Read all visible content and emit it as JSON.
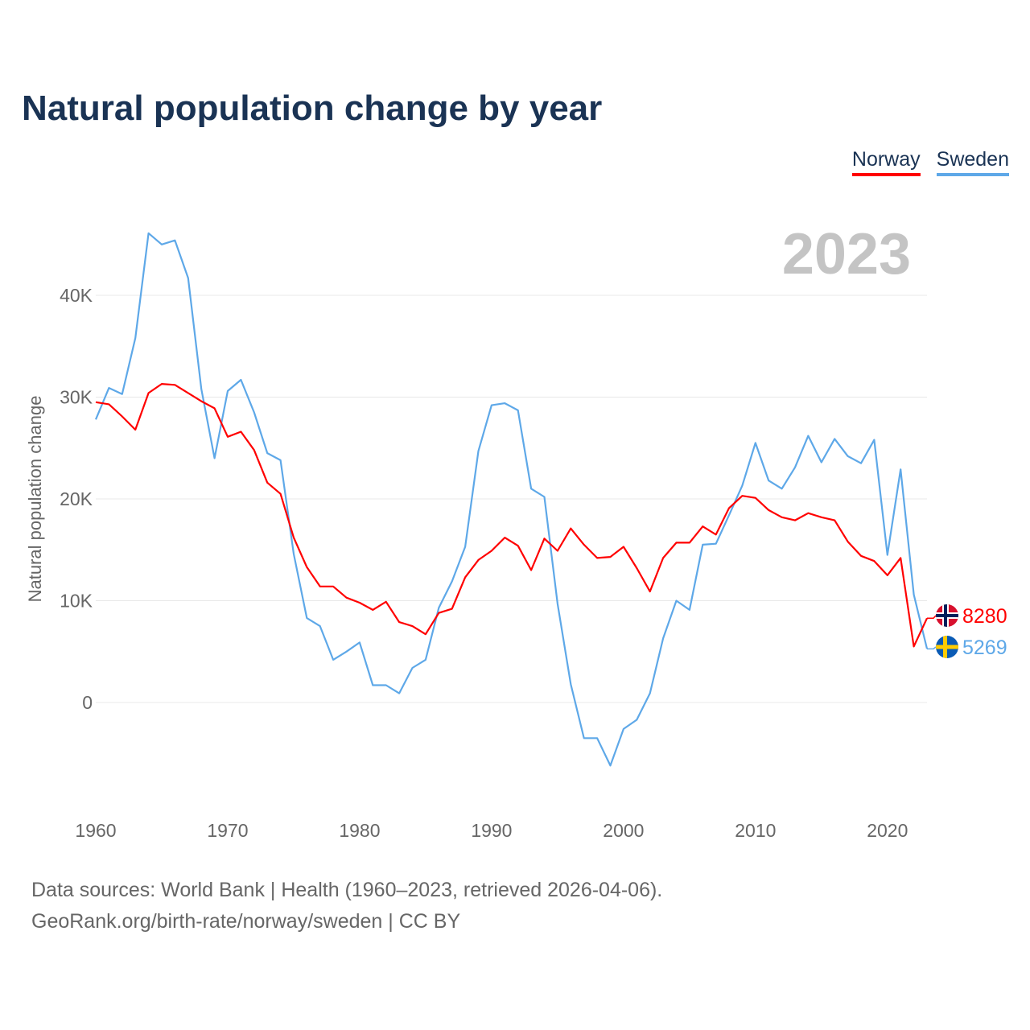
{
  "chart_data": {
    "type": "line",
    "title": "Natural population change by year",
    "xlabel": "",
    "ylabel": "Natural population change",
    "xlim": [
      1960,
      2023
    ],
    "ylim": [
      -10000,
      46000
    ],
    "x_ticks": [
      "1960",
      "1970",
      "1980",
      "1990",
      "2000",
      "2010",
      "2020"
    ],
    "y_ticks": [
      {
        "v": 0,
        "label": "0"
      },
      {
        "v": 10000,
        "label": "10K"
      },
      {
        "v": 20000,
        "label": "20K"
      },
      {
        "v": 30000,
        "label": "30K"
      },
      {
        "v": 40000,
        "label": "40K"
      }
    ],
    "grid": true,
    "legend_position": "top-right",
    "current_year_label": "2023",
    "x": [
      1960,
      1961,
      1962,
      1963,
      1964,
      1965,
      1966,
      1967,
      1968,
      1969,
      1970,
      1971,
      1972,
      1973,
      1974,
      1975,
      1976,
      1977,
      1978,
      1979,
      1980,
      1981,
      1982,
      1983,
      1984,
      1985,
      1986,
      1987,
      1988,
      1989,
      1990,
      1991,
      1992,
      1993,
      1994,
      1995,
      1996,
      1997,
      1998,
      1999,
      2000,
      2001,
      2002,
      2003,
      2004,
      2005,
      2006,
      2007,
      2008,
      2009,
      2010,
      2011,
      2012,
      2013,
      2014,
      2015,
      2016,
      2017,
      2018,
      2019,
      2020,
      2021,
      2022,
      2023
    ],
    "series": [
      {
        "name": "Norway",
        "color": "#ff0000",
        "end_label": "8280",
        "flag": "norway-flag",
        "values": [
          29500,
          29300,
          28100,
          26800,
          30400,
          31300,
          31200,
          30400,
          29600,
          28900,
          26100,
          26600,
          24800,
          21600,
          20500,
          16200,
          13300,
          11400,
          11400,
          10300,
          9800,
          9100,
          9900,
          7900,
          7500,
          6700,
          8800,
          9200,
          12300,
          14000,
          14900,
          16200,
          15400,
          13000,
          16100,
          14900,
          17100,
          15500,
          14200,
          14300,
          15300,
          13200,
          10900,
          14200,
          15700,
          15700,
          17300,
          16500,
          19100,
          20300,
          20100,
          18900,
          18200,
          17900,
          18600,
          18200,
          17900,
          15800,
          14400,
          13900,
          12500,
          14200,
          5500,
          8280
        ]
      },
      {
        "name": "Sweden",
        "color": "#5ea8e8",
        "end_label": "5269",
        "flag": "sweden-flag",
        "values": [
          27800,
          30900,
          30300,
          35800,
          46100,
          45000,
          45400,
          41700,
          30800,
          24000,
          30600,
          31700,
          28500,
          24500,
          23800,
          14600,
          8300,
          7500,
          4200,
          5000,
          5900,
          1700,
          1700,
          900,
          3400,
          4200,
          9300,
          11900,
          15300,
          24700,
          29200,
          29400,
          28700,
          21000,
          20200,
          9700,
          1800,
          -3500,
          -3500,
          -6200,
          -2600,
          -1700,
          900,
          6300,
          10000,
          9100,
          15500,
          15600,
          18400,
          21300,
          25500,
          21800,
          21000,
          23100,
          26200,
          23600,
          25900,
          24200,
          23500,
          25800,
          14500,
          22900,
          10600,
          5269
        ]
      }
    ]
  },
  "footer": {
    "line1": "Data sources: World Bank | Health (1960–2023, retrieved 2026-04-06).",
    "line2": "GeoRank.org/birth-rate/norway/sweden | CC BY"
  }
}
